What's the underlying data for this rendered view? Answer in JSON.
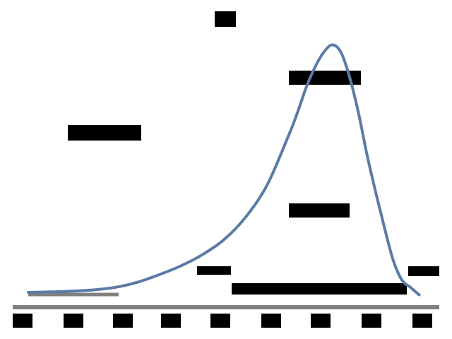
{
  "chart_data": {
    "type": "line",
    "title": "",
    "xlabel": "",
    "ylabel": "",
    "ylim": [
      0,
      100
    ],
    "grid": false,
    "line_color": "#5b7ba6",
    "axis_color": "#808080",
    "redaction_color": "#000000",
    "series": [
      {
        "x": [
          0,
          0.5,
          1,
          1.5,
          2,
          2.5,
          3,
          3.5,
          4,
          4.5,
          5,
          5.5,
          6,
          6.2,
          6.4,
          6.6,
          6.8,
          7,
          7.2,
          7.4,
          7.6,
          7.8,
          8,
          8.2,
          8.4,
          8.6,
          8.8,
          9
        ],
        "y": [
          0,
          0.2,
          0.5,
          1,
          2,
          4,
          7,
          10.5,
          15,
          21,
          30,
          43,
          63,
          72,
          82,
          90,
          96,
          99,
          96,
          86,
          72,
          55,
          40,
          26,
          13,
          5,
          2,
          -1
        ]
      }
    ]
  }
}
